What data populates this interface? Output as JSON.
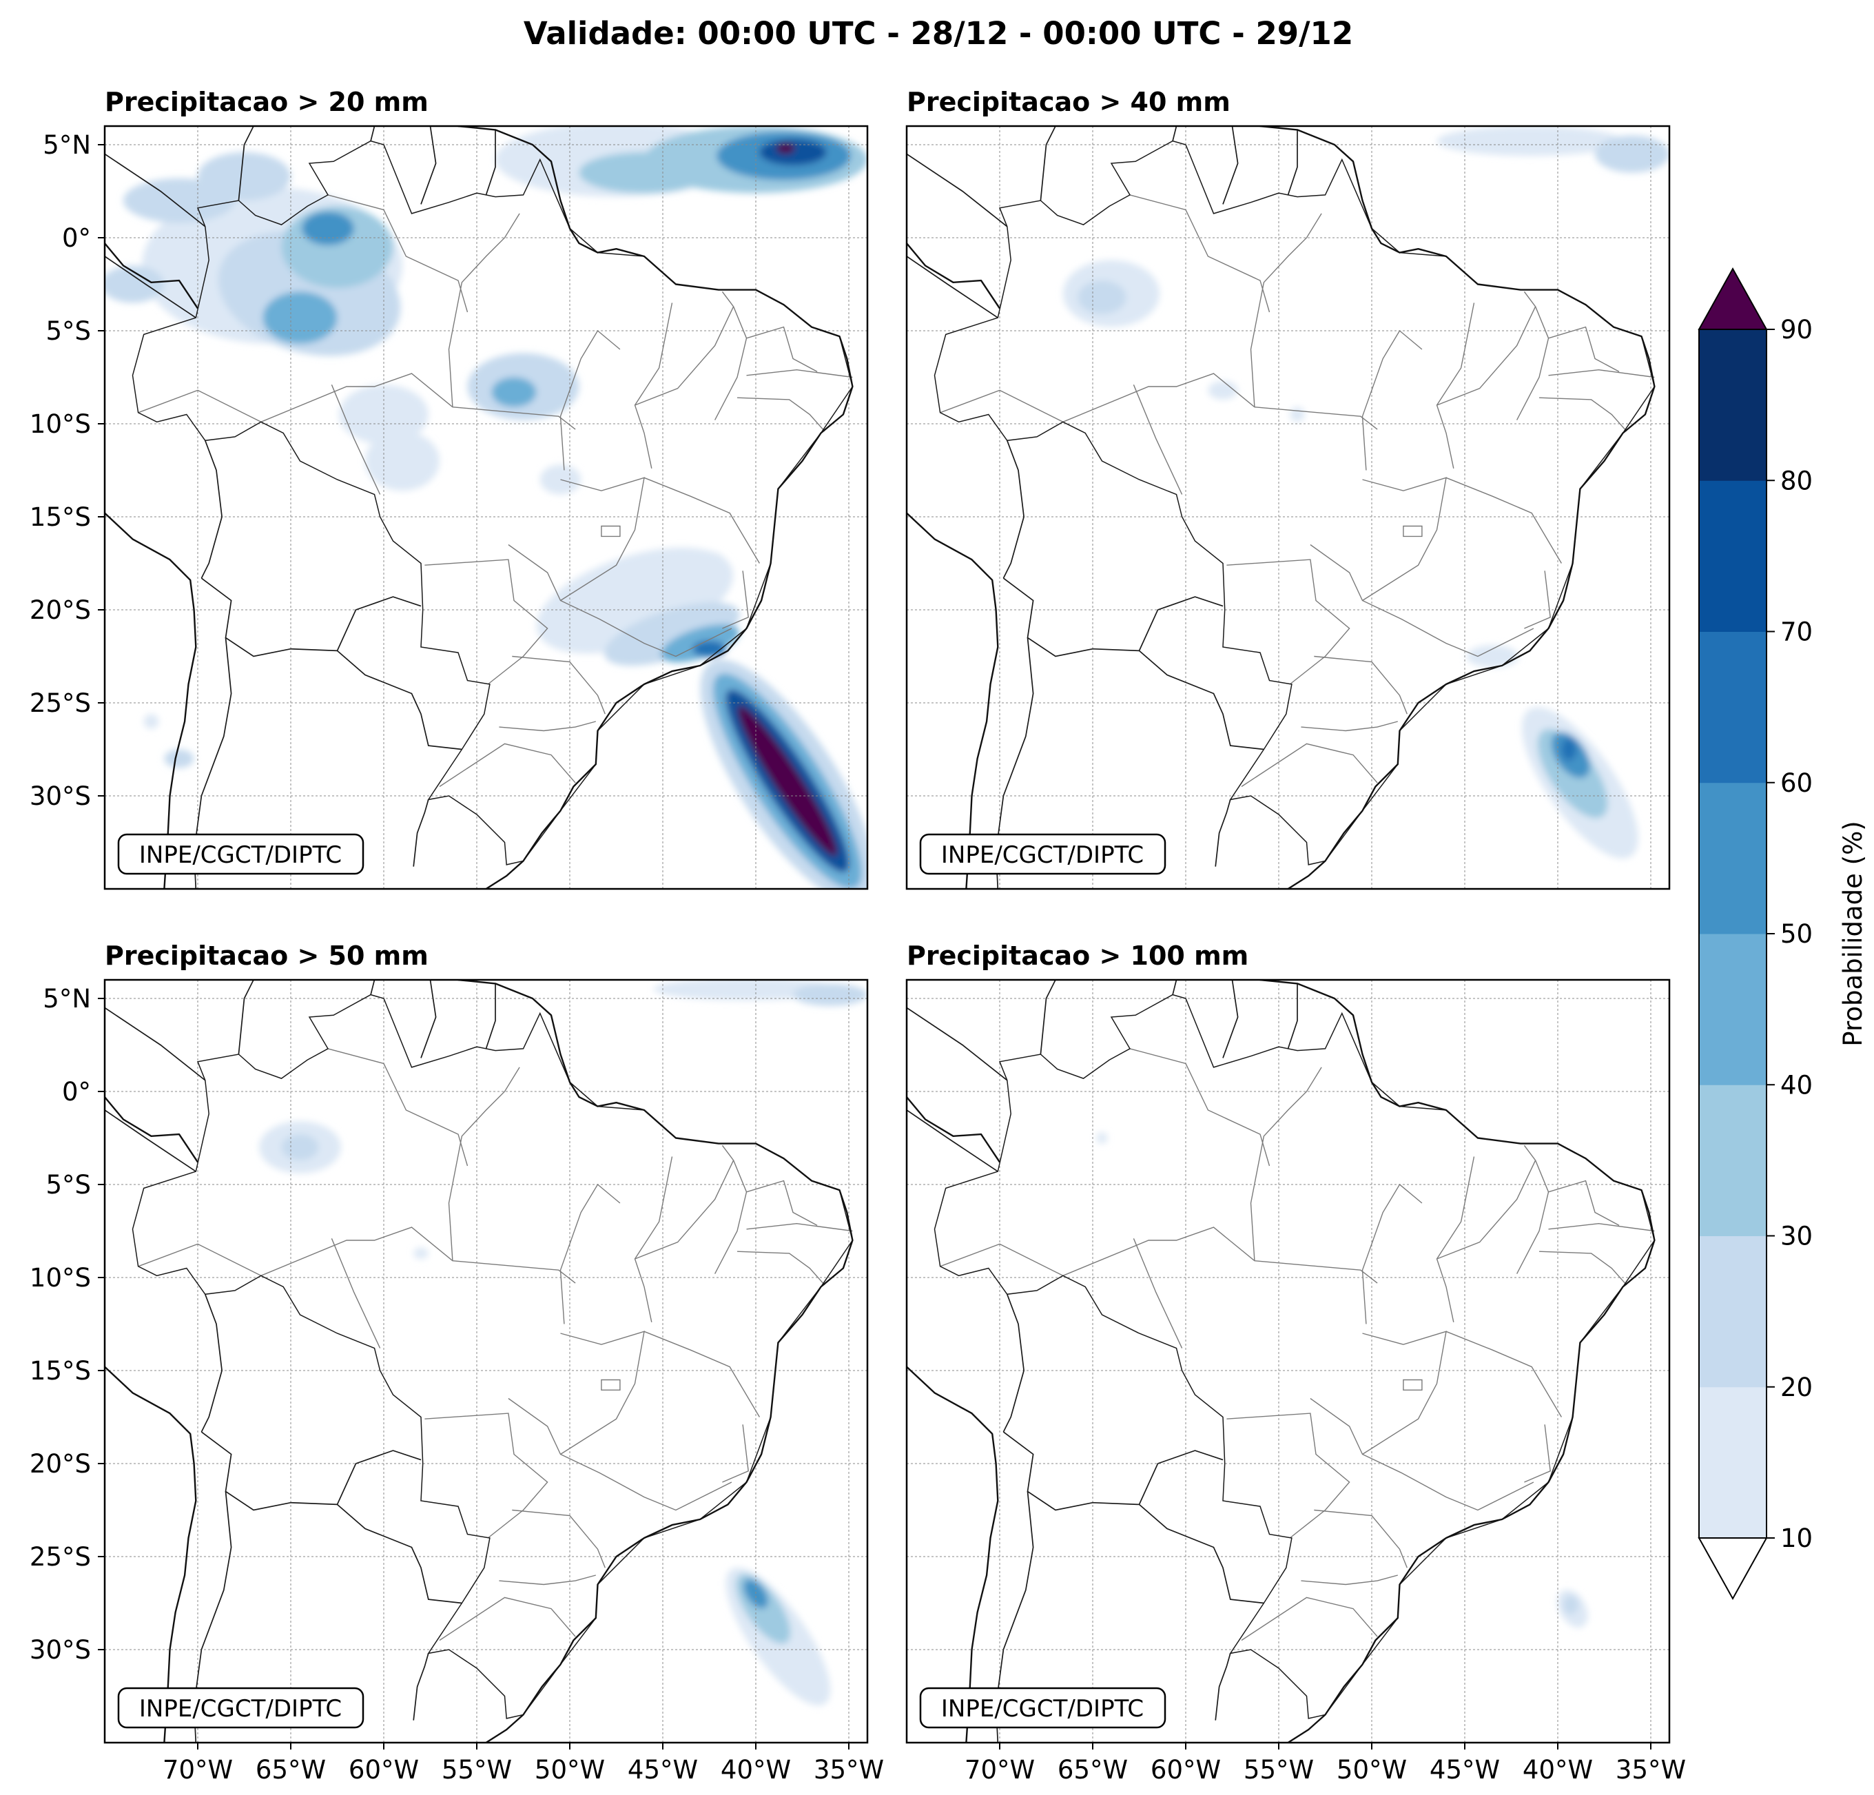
{
  "figure": {
    "title": "Validade: 00:00 UTC - 28/12 - 00:00 UTC - 29/12"
  },
  "panels": [
    {
      "title": "Precipitacao > 20 mm",
      "credit": "INPE/CGCT/DIPTC"
    },
    {
      "title": "Precipitacao > 40 mm",
      "credit": "INPE/CGCT/DIPTC"
    },
    {
      "title": "Precipitacao > 50 mm",
      "credit": "INPE/CGCT/DIPTC"
    },
    {
      "title": "Precipitacao > 100 mm",
      "credit": "INPE/CGCT/DIPTC"
    }
  ],
  "axes": {
    "lon_ticks": [
      "70°W",
      "65°W",
      "60°W",
      "55°W",
      "50°W",
      "45°W",
      "40°W",
      "35°W"
    ],
    "lat_ticks": [
      "5°N",
      "0°",
      "5°S",
      "10°S",
      "15°S",
      "20°S",
      "25°S",
      "30°S"
    ],
    "lon_range": [
      -75,
      -34
    ],
    "lat_range": [
      -35,
      6
    ]
  },
  "colorbar": {
    "label": "Probabilidade (%)",
    "ticks": [
      "10",
      "20",
      "30",
      "40",
      "50",
      "60",
      "70",
      "80",
      "90"
    ],
    "colors": [
      "#dde8f5",
      "#c6daee",
      "#9ecae1",
      "#6baed6",
      "#4292c6",
      "#2171b5",
      "#08519c",
      "#08306b"
    ],
    "over_color": "#4d004b",
    "under_color": "#ffffff"
  }
}
